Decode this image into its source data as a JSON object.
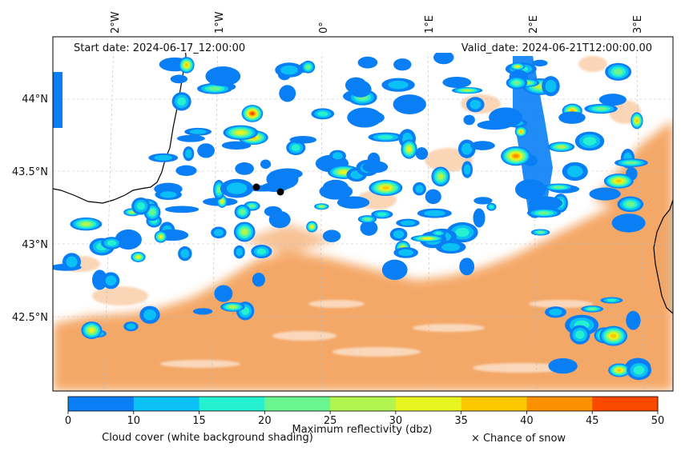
{
  "header": {
    "start_date": "Start date: 2024-06-17_12:00:00",
    "valid_date": "Valid_date: 2024-06-21T12:00:00.00"
  },
  "axes": {
    "longitude_ticks": [
      "2°W",
      "1°W",
      "0°",
      "1°E",
      "2°E",
      "3°E"
    ],
    "latitude_ticks": [
      "44°N",
      "43.5°N",
      "43°N",
      "42.5°N"
    ]
  },
  "colorbar": {
    "ticks": [
      "0",
      "10",
      "15",
      "20",
      "25",
      "30",
      "35",
      "40",
      "45",
      "50"
    ],
    "colors": [
      "#0a7ff5",
      "#0ac0f5",
      "#25f0d0",
      "#6af590",
      "#b0f550",
      "#e8f520",
      "#fbc800",
      "#fb9000",
      "#fb4a00"
    ],
    "label": "Maximum reflectivity (dbz)",
    "note_left": "Cloud cover (white background shading)",
    "note_right": "× Chance of snow"
  },
  "colors": {
    "land_cloud": "#f4a460",
    "sea": "#add8e6",
    "coast": "#000000"
  }
}
